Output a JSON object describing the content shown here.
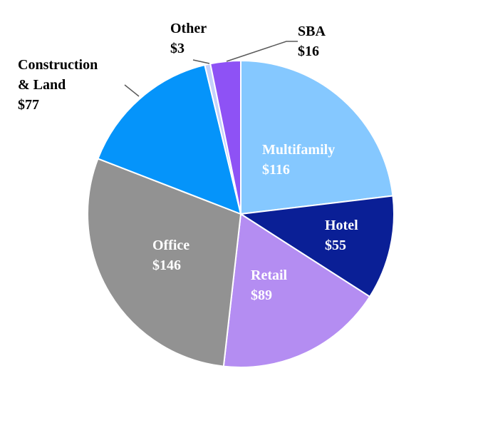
{
  "chart_data": {
    "type": "pie",
    "start_category": "Multifamily",
    "direction": "clockwise",
    "slices": [
      {
        "category": "Multifamily",
        "label": "Multifamily",
        "value_label": "$116",
        "value": 116,
        "color": "#85C8FF",
        "text_color": "#FFFFFF"
      },
      {
        "category": "Hotel",
        "label": "Hotel",
        "value_label": "$55",
        "value": 55,
        "color": "#0A1F96",
        "text_color": "#FFFFFF"
      },
      {
        "category": "Retail",
        "label": "Retail",
        "value_label": "$89",
        "value": 89,
        "color": "#B48DF2",
        "text_color": "#FFFFFF"
      },
      {
        "category": "Office",
        "label": "Office",
        "value_label": "$146",
        "value": 146,
        "color": "#929292",
        "text_color": "#FFFFFF"
      },
      {
        "category": "Construction & Land",
        "label": "Construction\n& Land",
        "value_label": "$77",
        "value": 77,
        "color": "#0594FA",
        "text_color": "#000000"
      },
      {
        "category": "Other",
        "label": "Other",
        "value_label": "$3",
        "value": 3,
        "color": "#C5D1FB",
        "text_color": "#000000"
      },
      {
        "category": "SBA",
        "label": "SBA",
        "value_label": "$16",
        "value": 16,
        "color": "#8E52F5",
        "text_color": "#000000"
      }
    ]
  }
}
